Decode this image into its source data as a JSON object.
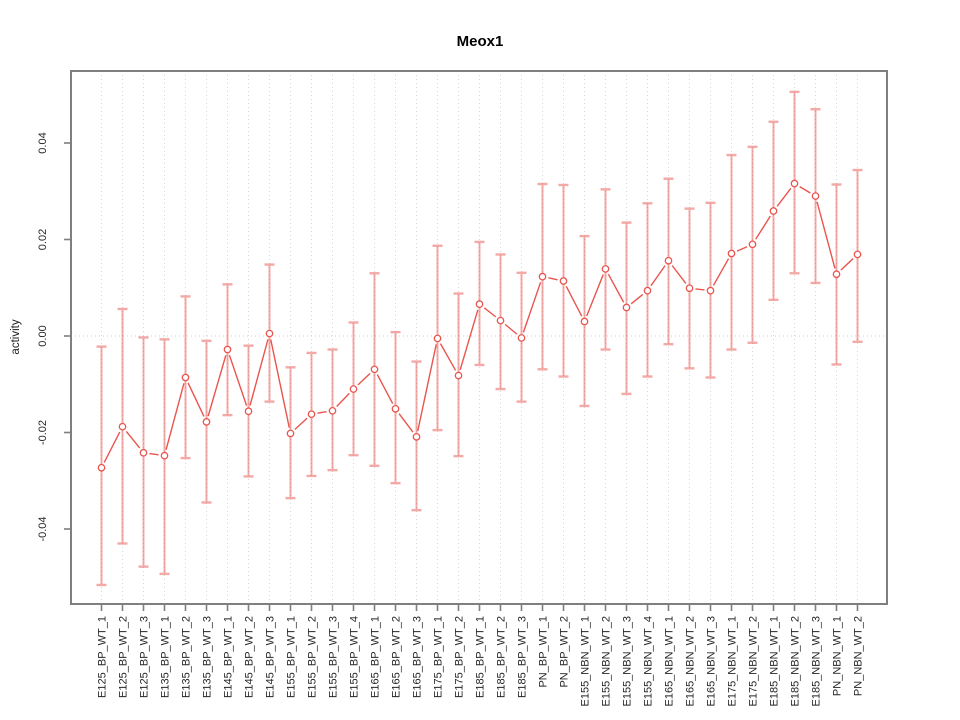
{
  "window": {
    "background": "#ffffff"
  },
  "colors": {
    "series": "#e9554e",
    "errorbar": "#e9554e",
    "errorbar_opacity": 0.5,
    "grid": "#d6d6d6",
    "zero_line": "#cccccc",
    "axis_box": "#7f7f7f",
    "tick_text": "#262626",
    "title_text": "#000000"
  },
  "chart_data": {
    "type": "line",
    "subtype": "points-with-error-bars",
    "title": "Meox1",
    "xlabel": "",
    "ylabel": "activity",
    "ylim": [
      -0.055,
      0.053
    ],
    "yticks": [
      -0.04,
      -0.02,
      0.0,
      0.02,
      0.04
    ],
    "grid": "vertical dotted line at every category; horizontal dotted line at y=0",
    "legend": "none",
    "categories": [
      "E125_BP_WT_1",
      "E125_BP_WT_2",
      "E125_BP_WT_3",
      "E135_BP_WT_1",
      "E135_BP_WT_2",
      "E135_BP_WT_3",
      "E145_BP_WT_1",
      "E145_BP_WT_2",
      "E145_BP_WT_3",
      "E155_BP_WT_1",
      "E155_BP_WT_2",
      "E155_BP_WT_3",
      "E155_BP_WT_4",
      "E165_BP_WT_1",
      "E165_BP_WT_2",
      "E165_BP_WT_3",
      "E175_BP_WT_1",
      "E175_BP_WT_2",
      "E185_BP_WT_1",
      "E185_BP_WT_2",
      "E185_BP_WT_3",
      "PN_BP_WT_1",
      "PN_BP_WT_2",
      "E155_NBN_WT_1",
      "E155_NBN_WT_2",
      "E155_NBN_WT_3",
      "E155_NBN_WT_4",
      "E165_NBN_WT_1",
      "E165_NBN_WT_2",
      "E165_NBN_WT_3",
      "E175_NBN_WT_1",
      "E175_NBN_WT_2",
      "E185_NBN_WT_1",
      "E185_NBN_WT_2",
      "E185_NBN_WT_3",
      "PN_NBN_WT_1",
      "PN_NBN_WT_2"
    ],
    "series": [
      {
        "name": "activity",
        "values": [
          -0.0273,
          -0.0188,
          -0.0242,
          -0.0248,
          -0.0086,
          -0.0178,
          -0.0028,
          -0.0156,
          0.0005,
          -0.0202,
          -0.0162,
          -0.0155,
          -0.011,
          -0.0069,
          -0.0151,
          -0.0209,
          -0.0005,
          -0.0082,
          0.0066,
          0.0032,
          -0.0004,
          0.0123,
          0.0114,
          0.003,
          0.0139,
          0.0059,
          0.0094,
          0.0156,
          0.0099,
          0.0094,
          0.0171,
          0.019,
          0.0259,
          0.0316,
          0.029,
          0.0128,
          0.0169
        ],
        "err_high": [
          -0.0022,
          0.0056,
          -0.0003,
          -0.0007,
          0.0082,
          -0.001,
          0.0107,
          -0.002,
          0.0148,
          -0.0065,
          -0.0035,
          -0.0028,
          0.0028,
          0.013,
          0.0008,
          -0.0053,
          0.0187,
          0.0088,
          0.0195,
          0.0169,
          0.0131,
          0.0315,
          0.0313,
          0.0207,
          0.0304,
          0.0235,
          0.0275,
          0.0326,
          0.0264,
          0.0276,
          0.0375,
          0.0392,
          0.0444,
          0.0506,
          0.047,
          0.0314,
          0.0344
        ],
        "err_low": [
          -0.0516,
          -0.043,
          -0.0478,
          -0.0493,
          -0.0253,
          -0.0345,
          -0.0164,
          -0.0291,
          -0.0136,
          -0.0336,
          -0.029,
          -0.0278,
          -0.0247,
          -0.0269,
          -0.0305,
          -0.0361,
          -0.0195,
          -0.0249,
          -0.006,
          -0.011,
          -0.0136,
          -0.0069,
          -0.0084,
          -0.0145,
          -0.0028,
          -0.012,
          -0.0084,
          -0.0017,
          -0.0067,
          -0.0086,
          -0.0028,
          -0.0014,
          0.0075,
          0.013,
          0.011,
          -0.0059,
          -0.0012
        ]
      }
    ]
  }
}
